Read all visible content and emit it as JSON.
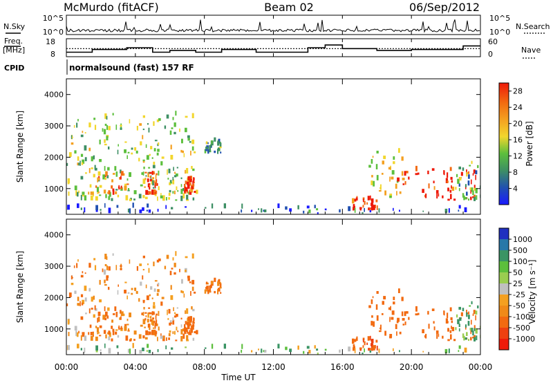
{
  "header": {
    "station": "McMurdo (fitACF)",
    "beam": "Beam 02",
    "date": "06/Sep/2012"
  },
  "noise_panel": {
    "left_label": "N.Sky",
    "right_label": "N.Search",
    "left_ticks": [
      "10^5",
      "10^0"
    ],
    "right_ticks": [
      "10^5",
      "10^0"
    ]
  },
  "freq_panel": {
    "left_label_1": "Freq.",
    "left_label_2": "[MHz]",
    "right_label": "Nave",
    "left_ticks": [
      "18",
      "8"
    ],
    "right_ticks": [
      "60",
      "0"
    ]
  },
  "cpid": {
    "label": "CPID",
    "text": "normalsound (fast) 157 RF"
  },
  "power_panel": {
    "ylabel": "Slant Range [km]",
    "yticks": [
      "1000",
      "2000",
      "3000",
      "4000"
    ],
    "colorbar_label": "Power [dB]",
    "colorbar_ticks": [
      "4",
      "8",
      "12",
      "16",
      "20",
      "24",
      "28"
    ],
    "colors": [
      "#1a1aff",
      "#2050b0",
      "#3d8f64",
      "#5cbf3c",
      "#f2d62d",
      "#f4a020",
      "#f26a10",
      "#ee1a0a"
    ]
  },
  "velocity_panel": {
    "ylabel": "Slant Range [km]",
    "yticks": [
      "1000",
      "2000",
      "3000",
      "4000"
    ],
    "colorbar_label": "Velocity [m s⁻¹]",
    "colorbar_ticks": [
      "1000",
      "500",
      "100",
      "50",
      "25",
      "-25",
      "-50",
      "-100",
      "-500",
      "-1000"
    ],
    "colors": [
      "#2030c0",
      "#2878a8",
      "#3a9464",
      "#5cbf3c",
      "#9acd50",
      "#c0c0c0",
      "#f4a020",
      "#f08a18",
      "#f26a10",
      "#ee4010",
      "#ee1a0a"
    ]
  },
  "xaxis": {
    "ticks": [
      "00:00",
      "04:00",
      "08:00",
      "12:00",
      "16:00",
      "20:00",
      "00:00"
    ],
    "label": "Time UT"
  },
  "chart_data": {
    "type": "heatmap",
    "title": "McMurdo (fitACF) Beam 02 06/Sep/2012",
    "xlabel": "Time UT",
    "ylabel": "Slant Range [km]",
    "xlim": [
      0,
      24
    ],
    "ylim": [
      180,
      4500
    ],
    "grid": false,
    "panels": [
      {
        "name": "Power",
        "unit": "dB",
        "colorbar_range": [
          0,
          30
        ]
      },
      {
        "name": "Velocity",
        "unit": "m s-1",
        "colorbar_range": [
          -1000,
          1000
        ]
      }
    ],
    "echo_regions": [
      {
        "t_start": 0.0,
        "t_end": 7.5,
        "range_min": 600,
        "range_max": 3400,
        "power_db": 14,
        "velocity": -60
      },
      {
        "t_start": 1.5,
        "t_end": 3.5,
        "range_min": 800,
        "range_max": 1500,
        "power_db": 22,
        "velocity": -100
      },
      {
        "t_start": 4.5,
        "t_end": 5.2,
        "range_min": 800,
        "range_max": 1500,
        "power_db": 26,
        "velocity": -120
      },
      {
        "t_start": 6.8,
        "t_end": 7.4,
        "range_min": 800,
        "range_max": 1300,
        "power_db": 28,
        "velocity": -150
      },
      {
        "t_start": 8.0,
        "t_end": 9.0,
        "range_min": 2100,
        "range_max": 2500,
        "power_db": 10,
        "velocity": -100
      },
      {
        "t_start": 16.5,
        "t_end": 18.0,
        "range_min": 300,
        "range_max": 650,
        "power_db": 28,
        "velocity": -300
      },
      {
        "t_start": 17.5,
        "t_end": 19.5,
        "range_min": 700,
        "range_max": 2200,
        "power_db": 16,
        "velocity": -150
      },
      {
        "t_start": 19.0,
        "t_end": 23.8,
        "range_min": 600,
        "range_max": 1600,
        "power_db": 28,
        "velocity": -200
      },
      {
        "t_start": 22.5,
        "t_end": 24.0,
        "range_min": 600,
        "range_max": 1800,
        "power_db": 12,
        "velocity": 80
      },
      {
        "t_start": 0.0,
        "t_end": 24.0,
        "range_min": 180,
        "range_max": 400,
        "power_db": 6,
        "velocity": 30
      }
    ],
    "freq_mhz": [
      [
        0.0,
        10.5
      ],
      [
        1.5,
        12.0
      ],
      [
        3.5,
        13.0
      ],
      [
        5.0,
        10.5
      ],
      [
        6.0,
        11.5
      ],
      [
        7.5,
        10.5
      ],
      [
        9.0,
        12.0
      ],
      [
        11.0,
        10.5
      ],
      [
        14.0,
        13.0
      ],
      [
        15.0,
        14.5
      ],
      [
        16.0,
        12.5
      ],
      [
        18.0,
        11.5
      ],
      [
        20.0,
        12.0
      ],
      [
        23.0,
        14.0
      ],
      [
        24.0,
        14.0
      ]
    ],
    "nave": [
      [
        0.0,
        27
      ],
      [
        24.0,
        27
      ]
    ]
  }
}
